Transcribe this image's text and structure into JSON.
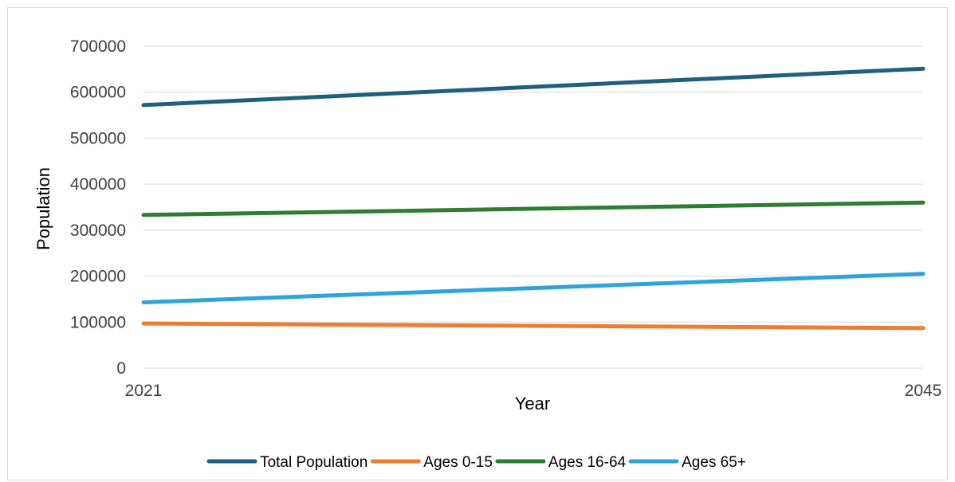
{
  "chart_data": {
    "type": "line",
    "title": "",
    "xlabel": "Year",
    "ylabel": "Population",
    "x": [
      2021,
      2045
    ],
    "x_tick_labels": [
      "2021",
      "2045"
    ],
    "ylim": [
      0,
      700000
    ],
    "y_ticks": [
      0,
      100000,
      200000,
      300000,
      400000,
      500000,
      600000,
      700000
    ],
    "y_tick_labels": [
      "0",
      "100000",
      "200000",
      "300000",
      "400000",
      "500000",
      "600000",
      "700000"
    ],
    "grid": "horizontal",
    "legend_position": "bottom",
    "series": [
      {
        "name": "Total Population",
        "color": "#1f5f7f",
        "values": [
          572000,
          651000
        ]
      },
      {
        "name": "Ages 0-15",
        "color": "#ed7d31",
        "values": [
          97000,
          87000
        ]
      },
      {
        "name": "Ages 16-64",
        "color": "#2e7d32",
        "values": [
          333000,
          360000
        ]
      },
      {
        "name": "Ages 65+",
        "color": "#2ea3dc",
        "values": [
          143000,
          205000
        ]
      }
    ]
  }
}
